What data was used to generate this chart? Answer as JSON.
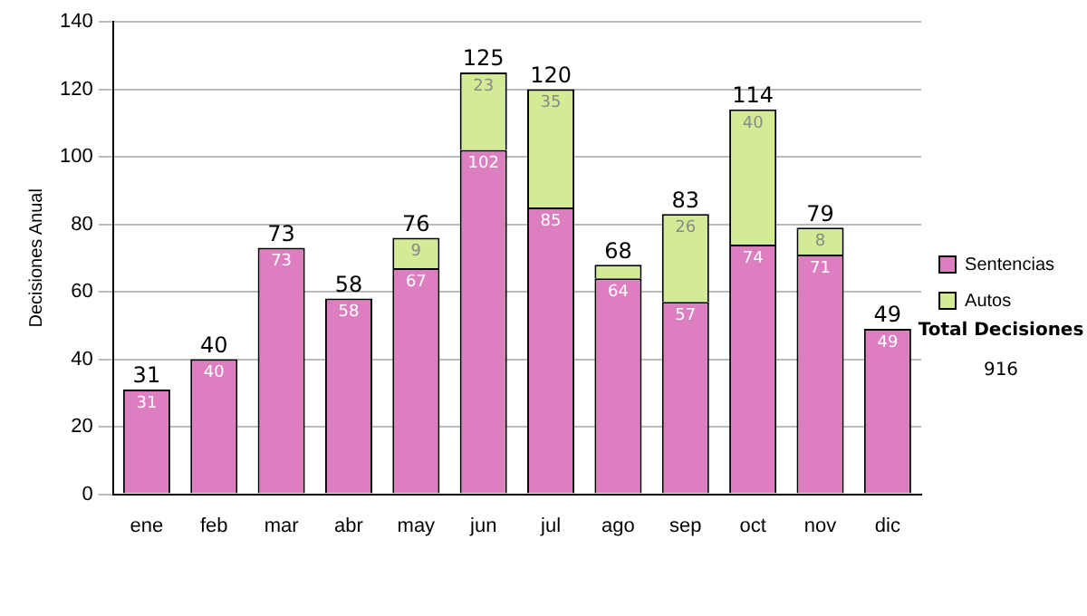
{
  "chart_data": {
    "type": "bar",
    "stacked": true,
    "ylabel": "Decisiones Anual",
    "categories": [
      "ene",
      "feb",
      "mar",
      "abr",
      "may",
      "jun",
      "jul",
      "ago",
      "sep",
      "oct",
      "nov",
      "dic"
    ],
    "series": [
      {
        "name": "Sentencias",
        "color": "#dc7ec0",
        "values": [
          31,
          40,
          73,
          58,
          67,
          102,
          85,
          64,
          57,
          74,
          71,
          49
        ],
        "value_labels": [
          "31",
          "40",
          "73",
          "58",
          "67",
          "102",
          "85",
          "64",
          "57",
          "74",
          "71",
          "49"
        ]
      },
      {
        "name": "Autos",
        "color": "#d4eb96",
        "values": [
          null,
          null,
          null,
          null,
          9,
          23,
          35,
          4,
          26,
          40,
          8,
          null
        ],
        "value_labels": [
          null,
          null,
          null,
          null,
          "9",
          "23",
          "35",
          null,
          "26",
          "40",
          "8",
          null
        ]
      }
    ],
    "totals": [
      "31",
      "40",
      "73",
      "58",
      "76",
      "125",
      "120",
      "68",
      "83",
      "114",
      "79",
      "49"
    ],
    "ylim": [
      0,
      140
    ],
    "yticks": [
      0,
      20,
      40,
      60,
      80,
      100,
      120,
      140
    ],
    "grid": "y",
    "legend": "right",
    "annotations": [
      "Total Decisiones",
      "916"
    ]
  }
}
